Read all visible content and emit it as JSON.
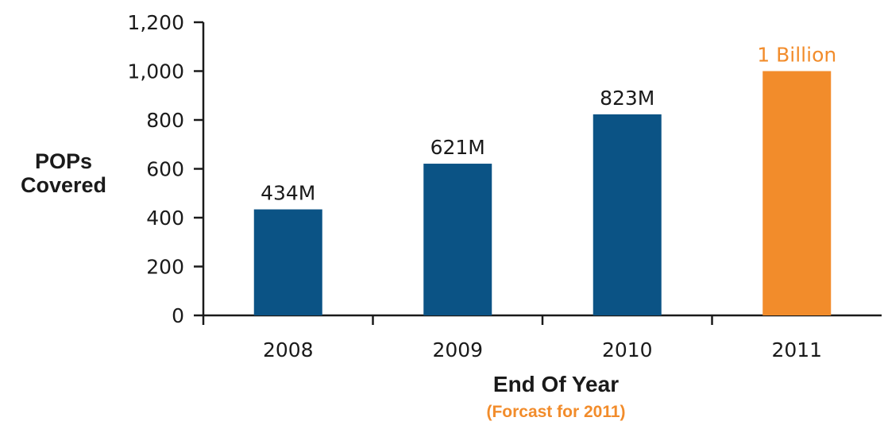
{
  "chart_data": {
    "type": "bar",
    "categories": [
      "2008",
      "2009",
      "2010",
      "2011"
    ],
    "values": [
      434,
      621,
      823,
      1000
    ],
    "data_labels": [
      "434M",
      "621M",
      "823M",
      "1 Billion"
    ],
    "ylim": [
      0,
      1200
    ],
    "yticks": [
      0,
      200,
      400,
      600,
      800,
      1000,
      1200
    ],
    "ytick_labels": [
      "0",
      "200",
      "400",
      "600",
      "800",
      "1,000",
      "1,200"
    ],
    "ylabel_lines": [
      "POPs",
      "Covered"
    ],
    "xlabel": "End Of Year",
    "note": "(Forcast for 2011)",
    "grid": false,
    "colors": {
      "actual": "#0b5385",
      "forecast": "#f28c2b",
      "axis": "#1a1a1a",
      "text": "#1a1a1a"
    },
    "forecast_index": 3
  }
}
